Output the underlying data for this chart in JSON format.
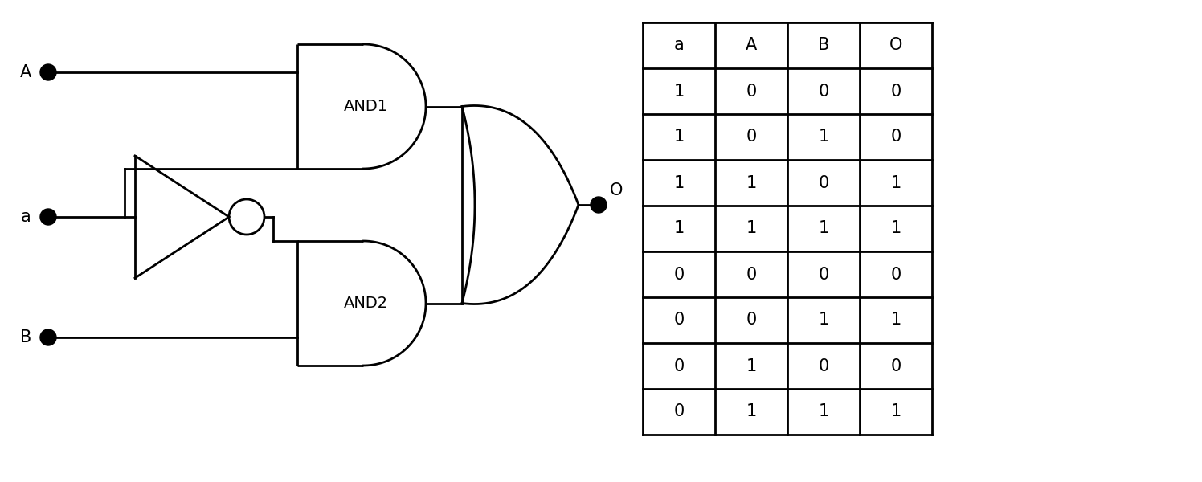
{
  "background_color": "#ffffff",
  "input_labels": [
    "A",
    "a",
    "B"
  ],
  "output_label": "O",
  "and1_label": "AND1",
  "and2_label": "AND2",
  "truth_table_headers": [
    "a",
    "A",
    "B",
    "O"
  ],
  "truth_table_rows": [
    [
      1,
      0,
      0,
      0
    ],
    [
      1,
      0,
      1,
      0
    ],
    [
      1,
      1,
      0,
      1
    ],
    [
      1,
      1,
      1,
      1
    ],
    [
      0,
      0,
      0,
      0
    ],
    [
      0,
      0,
      1,
      1
    ],
    [
      0,
      1,
      0,
      0
    ],
    [
      0,
      1,
      1,
      1
    ]
  ],
  "line_color": "#000000",
  "line_width": 2.0,
  "font_size": 14,
  "table_font_size": 15
}
